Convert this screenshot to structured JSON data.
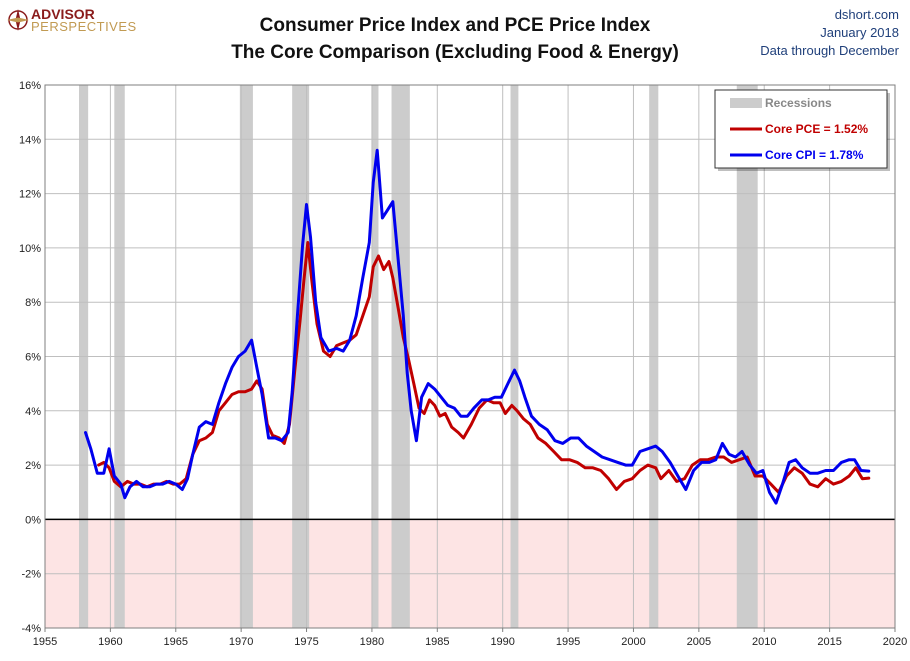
{
  "header": {
    "logo_top": "ADVISOR",
    "logo_bottom": "PERSPECTIVES",
    "credit_site": "dshort.com",
    "credit_date": "January 2018",
    "credit_note": "Data through December"
  },
  "chart_data": {
    "type": "line",
    "title_line1": "Consumer Price Index and PCE Price Index",
    "title_line2": "The Core Comparison (Excluding Food & Energy)",
    "xlim": [
      1955,
      2020
    ],
    "ylim": [
      -4,
      16
    ],
    "x_ticks": [
      1955,
      1960,
      1965,
      1970,
      1975,
      1980,
      1985,
      1990,
      1995,
      2000,
      2005,
      2010,
      2015,
      2020
    ],
    "x_tick_labels": [
      "1955",
      "1960",
      "1965",
      "1970",
      "1975",
      "1980",
      "1985",
      "1990",
      "1995",
      "2000",
      "2005",
      "2010",
      "2015",
      "2020"
    ],
    "y_ticks": [
      -4,
      -2,
      0,
      2,
      4,
      6,
      8,
      10,
      12,
      14,
      16
    ],
    "y_tick_labels": [
      "-4%",
      "-2%",
      "0%",
      "2%",
      "4%",
      "6%",
      "8%",
      "10%",
      "12%",
      "14%",
      "16%"
    ],
    "grid": true,
    "legend_position": "top-right",
    "colors": {
      "pce": "#c00000",
      "cpi": "#0000ee",
      "recession": "#cccccc",
      "negative_zone": "#fde4e4",
      "zero_line": "#000000"
    },
    "recessions": [
      [
        1957.6,
        1958.3
      ],
      [
        1960.3,
        1961.1
      ],
      [
        1969.9,
        1970.9
      ],
      [
        1973.9,
        1975.2
      ],
      [
        1980.0,
        1980.5
      ],
      [
        1981.5,
        1982.9
      ],
      [
        1990.6,
        1991.2
      ],
      [
        2001.2,
        2001.9
      ],
      [
        2007.9,
        2009.5
      ]
    ],
    "legend": [
      {
        "key": "recession",
        "label": "Recessions"
      },
      {
        "key": "pce",
        "label": "Core PCE = 1.52%"
      },
      {
        "key": "cpi",
        "label": "Core CPI = 1.78%"
      }
    ],
    "series": [
      {
        "key": "pce",
        "points": [
          [
            1959.1,
            2.0
          ],
          [
            1959.5,
            2.1
          ],
          [
            1959.9,
            1.9
          ],
          [
            1960.3,
            1.4
          ],
          [
            1960.8,
            1.2
          ],
          [
            1961.3,
            1.4
          ],
          [
            1961.8,
            1.3
          ],
          [
            1962.3,
            1.3
          ],
          [
            1962.8,
            1.2
          ],
          [
            1963.3,
            1.3
          ],
          [
            1963.8,
            1.3
          ],
          [
            1964.3,
            1.4
          ],
          [
            1964.8,
            1.3
          ],
          [
            1965.3,
            1.3
          ],
          [
            1965.8,
            1.5
          ],
          [
            1966.3,
            2.4
          ],
          [
            1966.8,
            2.9
          ],
          [
            1967.3,
            3.0
          ],
          [
            1967.8,
            3.2
          ],
          [
            1968.3,
            4.0
          ],
          [
            1968.8,
            4.3
          ],
          [
            1969.3,
            4.6
          ],
          [
            1969.8,
            4.7
          ],
          [
            1970.3,
            4.7
          ],
          [
            1970.8,
            4.8
          ],
          [
            1971.2,
            5.1
          ],
          [
            1971.6,
            4.8
          ],
          [
            1972.0,
            3.5
          ],
          [
            1972.4,
            3.1
          ],
          [
            1972.9,
            3.0
          ],
          [
            1973.3,
            2.8
          ],
          [
            1973.7,
            3.5
          ],
          [
            1974.1,
            5.5
          ],
          [
            1974.5,
            7.3
          ],
          [
            1974.8,
            8.8
          ],
          [
            1975.1,
            10.2
          ],
          [
            1975.4,
            8.8
          ],
          [
            1975.8,
            7.2
          ],
          [
            1976.3,
            6.2
          ],
          [
            1976.8,
            6.0
          ],
          [
            1977.3,
            6.4
          ],
          [
            1977.8,
            6.5
          ],
          [
            1978.3,
            6.6
          ],
          [
            1978.8,
            6.8
          ],
          [
            1979.3,
            7.5
          ],
          [
            1979.8,
            8.2
          ],
          [
            1980.1,
            9.3
          ],
          [
            1980.5,
            9.7
          ],
          [
            1980.9,
            9.2
          ],
          [
            1981.3,
            9.5
          ],
          [
            1981.6,
            8.9
          ],
          [
            1982.0,
            7.8
          ],
          [
            1982.4,
            6.7
          ],
          [
            1982.8,
            5.9
          ],
          [
            1983.2,
            5.0
          ],
          [
            1983.6,
            4.1
          ],
          [
            1984.0,
            3.9
          ],
          [
            1984.4,
            4.4
          ],
          [
            1984.8,
            4.2
          ],
          [
            1985.2,
            3.8
          ],
          [
            1985.6,
            3.9
          ],
          [
            1986.1,
            3.4
          ],
          [
            1986.6,
            3.2
          ],
          [
            1987.0,
            3.0
          ],
          [
            1987.6,
            3.5
          ],
          [
            1988.2,
            4.1
          ],
          [
            1988.8,
            4.4
          ],
          [
            1989.3,
            4.3
          ],
          [
            1989.8,
            4.3
          ],
          [
            1990.2,
            3.9
          ],
          [
            1990.7,
            4.2
          ],
          [
            1991.1,
            4.0
          ],
          [
            1991.6,
            3.7
          ],
          [
            1992.1,
            3.5
          ],
          [
            1992.7,
            3.0
          ],
          [
            1993.3,
            2.8
          ],
          [
            1993.9,
            2.5
          ],
          [
            1994.5,
            2.2
          ],
          [
            1995.1,
            2.2
          ],
          [
            1995.7,
            2.1
          ],
          [
            1996.3,
            1.9
          ],
          [
            1996.9,
            1.9
          ],
          [
            1997.5,
            1.8
          ],
          [
            1998.1,
            1.5
          ],
          [
            1998.7,
            1.1
          ],
          [
            1999.3,
            1.4
          ],
          [
            1999.9,
            1.5
          ],
          [
            2000.5,
            1.8
          ],
          [
            2001.1,
            2.0
          ],
          [
            2001.7,
            1.9
          ],
          [
            2002.1,
            1.5
          ],
          [
            2002.7,
            1.8
          ],
          [
            2003.3,
            1.4
          ],
          [
            2003.9,
            1.5
          ],
          [
            2004.5,
            2.0
          ],
          [
            2005.1,
            2.2
          ],
          [
            2005.7,
            2.2
          ],
          [
            2006.3,
            2.3
          ],
          [
            2006.9,
            2.3
          ],
          [
            2007.5,
            2.1
          ],
          [
            2008.1,
            2.2
          ],
          [
            2008.7,
            2.3
          ],
          [
            2009.3,
            1.6
          ],
          [
            2009.9,
            1.6
          ],
          [
            2010.5,
            1.3
          ],
          [
            2011.1,
            1.0
          ],
          [
            2011.7,
            1.6
          ],
          [
            2012.3,
            1.9
          ],
          [
            2012.9,
            1.7
          ],
          [
            2013.5,
            1.3
          ],
          [
            2014.1,
            1.2
          ],
          [
            2014.7,
            1.5
          ],
          [
            2015.3,
            1.3
          ],
          [
            2015.9,
            1.4
          ],
          [
            2016.5,
            1.6
          ],
          [
            2017.0,
            1.9
          ],
          [
            2017.5,
            1.5
          ],
          [
            2018.0,
            1.52
          ]
        ]
      },
      {
        "key": "cpi",
        "points": [
          [
            1958.1,
            3.2
          ],
          [
            1958.5,
            2.6
          ],
          [
            1959.0,
            1.7
          ],
          [
            1959.5,
            1.7
          ],
          [
            1959.9,
            2.6
          ],
          [
            1960.3,
            1.6
          ],
          [
            1960.8,
            1.3
          ],
          [
            1961.1,
            0.8
          ],
          [
            1961.5,
            1.2
          ],
          [
            1962.0,
            1.4
          ],
          [
            1962.5,
            1.2
          ],
          [
            1963.0,
            1.2
          ],
          [
            1963.5,
            1.3
          ],
          [
            1964.0,
            1.3
          ],
          [
            1964.5,
            1.4
          ],
          [
            1965.0,
            1.3
          ],
          [
            1965.5,
            1.1
          ],
          [
            1965.9,
            1.5
          ],
          [
            1966.3,
            2.4
          ],
          [
            1966.8,
            3.4
          ],
          [
            1967.3,
            3.6
          ],
          [
            1967.8,
            3.5
          ],
          [
            1968.3,
            4.3
          ],
          [
            1968.8,
            5.0
          ],
          [
            1969.3,
            5.6
          ],
          [
            1969.8,
            6.0
          ],
          [
            1970.3,
            6.2
          ],
          [
            1970.8,
            6.6
          ],
          [
            1971.2,
            5.6
          ],
          [
            1971.6,
            4.6
          ],
          [
            1972.1,
            3.0
          ],
          [
            1972.6,
            3.0
          ],
          [
            1973.1,
            2.9
          ],
          [
            1973.6,
            3.2
          ],
          [
            1973.9,
            4.7
          ],
          [
            1974.3,
            7.5
          ],
          [
            1974.7,
            10.1
          ],
          [
            1975.0,
            11.6
          ],
          [
            1975.3,
            10.4
          ],
          [
            1975.7,
            8.0
          ],
          [
            1976.1,
            6.7
          ],
          [
            1976.7,
            6.2
          ],
          [
            1977.3,
            6.3
          ],
          [
            1977.8,
            6.2
          ],
          [
            1978.3,
            6.6
          ],
          [
            1978.8,
            7.5
          ],
          [
            1979.3,
            8.9
          ],
          [
            1979.8,
            10.2
          ],
          [
            1980.1,
            12.4
          ],
          [
            1980.4,
            13.6
          ],
          [
            1980.8,
            11.1
          ],
          [
            1981.2,
            11.4
          ],
          [
            1981.6,
            11.7
          ],
          [
            1982.0,
            9.6
          ],
          [
            1982.4,
            7.5
          ],
          [
            1982.7,
            5.4
          ],
          [
            1983.0,
            4.0
          ],
          [
            1983.4,
            2.9
          ],
          [
            1983.8,
            4.5
          ],
          [
            1984.3,
            5.0
          ],
          [
            1984.8,
            4.8
          ],
          [
            1985.3,
            4.5
          ],
          [
            1985.8,
            4.2
          ],
          [
            1986.3,
            4.1
          ],
          [
            1986.8,
            3.8
          ],
          [
            1987.3,
            3.8
          ],
          [
            1987.8,
            4.1
          ],
          [
            1988.4,
            4.4
          ],
          [
            1988.9,
            4.4
          ],
          [
            1989.4,
            4.5
          ],
          [
            1989.9,
            4.5
          ],
          [
            1990.4,
            5.0
          ],
          [
            1990.9,
            5.5
          ],
          [
            1991.3,
            5.1
          ],
          [
            1991.7,
            4.5
          ],
          [
            1992.2,
            3.8
          ],
          [
            1992.8,
            3.5
          ],
          [
            1993.4,
            3.3
          ],
          [
            1994.0,
            2.9
          ],
          [
            1994.6,
            2.8
          ],
          [
            1995.2,
            3.0
          ],
          [
            1995.8,
            3.0
          ],
          [
            1996.4,
            2.7
          ],
          [
            1997.0,
            2.5
          ],
          [
            1997.6,
            2.3
          ],
          [
            1998.2,
            2.2
          ],
          [
            1998.8,
            2.1
          ],
          [
            1999.4,
            2.0
          ],
          [
            1999.9,
            2.0
          ],
          [
            2000.5,
            2.5
          ],
          [
            2001.1,
            2.6
          ],
          [
            2001.7,
            2.7
          ],
          [
            2002.2,
            2.5
          ],
          [
            2002.8,
            2.1
          ],
          [
            2003.4,
            1.6
          ],
          [
            2004.0,
            1.1
          ],
          [
            2004.6,
            1.8
          ],
          [
            2005.2,
            2.1
          ],
          [
            2005.8,
            2.1
          ],
          [
            2006.3,
            2.2
          ],
          [
            2006.8,
            2.8
          ],
          [
            2007.3,
            2.4
          ],
          [
            2007.8,
            2.3
          ],
          [
            2008.3,
            2.5
          ],
          [
            2008.9,
            2.0
          ],
          [
            2009.4,
            1.7
          ],
          [
            2009.9,
            1.8
          ],
          [
            2010.4,
            1.0
          ],
          [
            2010.9,
            0.6
          ],
          [
            2011.4,
            1.3
          ],
          [
            2011.9,
            2.1
          ],
          [
            2012.4,
            2.2
          ],
          [
            2012.9,
            1.9
          ],
          [
            2013.5,
            1.7
          ],
          [
            2014.1,
            1.7
          ],
          [
            2014.7,
            1.8
          ],
          [
            2015.3,
            1.8
          ],
          [
            2015.9,
            2.1
          ],
          [
            2016.5,
            2.2
          ],
          [
            2016.9,
            2.2
          ],
          [
            2017.4,
            1.8
          ],
          [
            2018.0,
            1.78
          ]
        ]
      }
    ]
  }
}
